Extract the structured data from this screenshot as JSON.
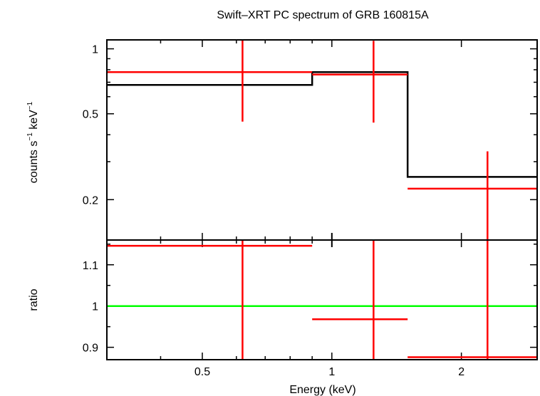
{
  "chart_data": [
    {
      "panel": "spectrum",
      "type": "step+errorbar",
      "title": "Swift–XRT PC spectrum of GRB 160815A",
      "ylabel_main": "counts s",
      "ylabel_sup1": "−1",
      "ylabel_mid": " keV",
      "ylabel_sup2": "−1",
      "xscale": "log",
      "yscale": "log",
      "xlim": [
        0.3,
        3.0
      ],
      "ylim": [
        0.13,
        1.1
      ],
      "yticks": [
        {
          "value": 0.2,
          "label": "0.2"
        },
        {
          "value": 0.5,
          "label": "0.5"
        },
        {
          "value": 1.0,
          "label": "1"
        }
      ],
      "data_color": "#ff0000",
      "model_color": "#000000",
      "data": [
        {
          "xlo": 0.3,
          "xhi": 0.9,
          "x": 0.62,
          "y": 0.78,
          "ylo": 0.46,
          "yhi": 1.1
        },
        {
          "xlo": 0.9,
          "xhi": 1.5,
          "x": 1.25,
          "y": 0.76,
          "ylo": 0.455,
          "yhi": 1.09
        },
        {
          "xlo": 1.5,
          "xhi": 3.0,
          "x": 2.3,
          "y": 0.225,
          "ylo": 0.13,
          "yhi": 0.335
        }
      ],
      "model": [
        {
          "xlo": 0.3,
          "xhi": 0.9,
          "y": 0.68
        },
        {
          "xlo": 0.9,
          "xhi": 1.5,
          "y": 0.78
        },
        {
          "xlo": 1.5,
          "xhi": 3.0,
          "y": 0.255
        }
      ]
    },
    {
      "panel": "ratio",
      "type": "errorbar",
      "ylabel": "ratio",
      "xlabel": "Energy (keV)",
      "xscale": "log",
      "xlim": [
        0.3,
        3.0
      ],
      "ylim": [
        0.87,
        1.16
      ],
      "xticks": [
        {
          "value": 0.5,
          "label": "0.5"
        },
        {
          "value": 1.0,
          "label": "1"
        },
        {
          "value": 2.0,
          "label": "2"
        }
      ],
      "yticks": [
        {
          "value": 0.9,
          "label": "0.9"
        },
        {
          "value": 1.0,
          "label": "1"
        },
        {
          "value": 1.1,
          "label": "1.1"
        }
      ],
      "reference_line": 1.0,
      "reference_color": "#00ff00",
      "data_color": "#ff0000",
      "data": [
        {
          "xlo": 0.3,
          "xhi": 0.9,
          "x": 0.62,
          "y": 1.146,
          "ylo": 0.87,
          "yhi": 1.16
        },
        {
          "xlo": 0.9,
          "xhi": 1.5,
          "x": 1.25,
          "y": 0.968,
          "ylo": 0.87,
          "yhi": 1.16
        },
        {
          "xlo": 1.5,
          "xhi": 3.0,
          "x": 2.3,
          "y": 0.876,
          "ylo": 0.87,
          "yhi": 1.16
        }
      ]
    }
  ]
}
